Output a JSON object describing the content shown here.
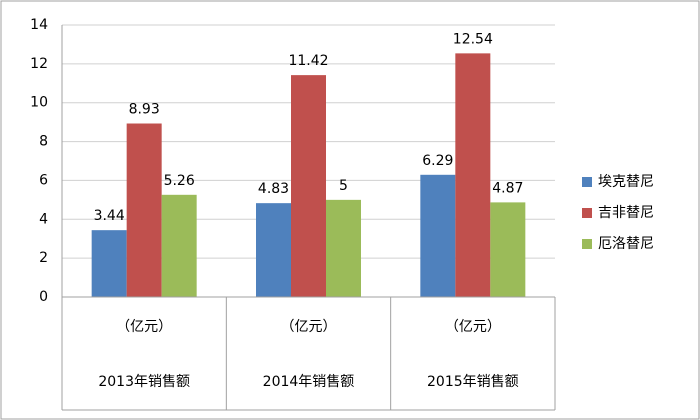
{
  "chart_data": {
    "type": "bar",
    "categories": [
      "2013年销售额",
      "2014年销售额",
      "2015年销售额"
    ],
    "category_units": [
      "（亿元）",
      "（亿元）",
      "（亿元）"
    ],
    "series": [
      {
        "name": "埃克替尼",
        "color": "#4f81bd",
        "values": [
          3.44,
          4.83,
          6.29
        ]
      },
      {
        "name": "吉非替尼",
        "color": "#c0504d",
        "values": [
          8.93,
          11.42,
          12.54
        ]
      },
      {
        "name": "厄洛替尼",
        "color": "#9bbb59",
        "values": [
          5.26,
          5,
          4.87
        ]
      }
    ],
    "ylim": [
      0,
      14
    ],
    "yticks": [
      0,
      2,
      4,
      6,
      8,
      10,
      12,
      14
    ],
    "grid": true,
    "legend": "right"
  }
}
